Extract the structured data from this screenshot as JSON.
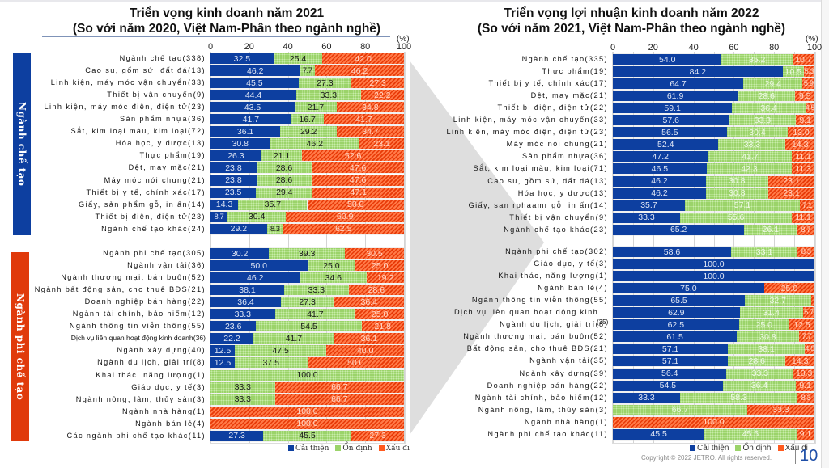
{
  "page": {
    "number": "10",
    "copyright": "Copyright © 2022 JETRO. All rights reserved."
  },
  "colors": {
    "improve": "#0d3fa0",
    "stable": "#9bd36a",
    "worse": "#ff5a1f",
    "mfg_band": "#0d3fa0",
    "nonmfg_band": "#e03a0b"
  },
  "chart_data": [
    {
      "type": "bar",
      "orientation": "horizontal-stacked-100",
      "title": "Triển vọng kinh doanh năm 2021",
      "subtitle": "(So với năm 2020, Việt Nam-Phân theo ngành nghề)",
      "unit_label": "(%)",
      "xlim": [
        0,
        100
      ],
      "xticks": [
        "0",
        "20",
        "40",
        "60",
        "80",
        "100"
      ],
      "grid": true,
      "legend": {
        "position": "bottom-right",
        "entries": [
          "Cải thiện",
          "Ổn định",
          "Xấu đi"
        ]
      },
      "groups": [
        {
          "label": "Ngành chế tạo",
          "categories": [
            "Ngành chế tạo(338)",
            "Cao su, gốm sứ, đất đá(13)",
            "Linh kiện, máy móc vận chuyển(33)",
            "Thiết bị vận chuyển(9)",
            "Linh kiện, máy móc điện, điện tử(23)",
            "Sản phẩm nhựa(36)",
            "Sắt, kim loại màu, kim loại(72)",
            "Hóa học, y dược(13)",
            "Thực phẩm(19)",
            "Dệt, may mặc(21)",
            "Máy móc nói chung(21)",
            "Thiết bị y tế, chính xác(17)",
            "Giấy, sản phẩm gỗ, in ấn(14)",
            "Thiết bị điện, điện tử(23)",
            "Ngành chế tạo khác(24)"
          ],
          "series": [
            {
              "name": "Cải thiện",
              "values": [
                32.5,
                46.2,
                45.5,
                44.4,
                43.5,
                41.7,
                36.1,
                30.8,
                26.3,
                23.8,
                23.8,
                23.5,
                14.3,
                8.7,
                29.2
              ]
            },
            {
              "name": "Ổn định",
              "values": [
                25.4,
                7.7,
                27.3,
                33.3,
                21.7,
                16.7,
                29.2,
                46.2,
                21.1,
                28.6,
                28.6,
                29.4,
                35.7,
                30.4,
                8.3
              ]
            },
            {
              "name": "Xấu đi",
              "values": [
                42.0,
                46.2,
                27.3,
                22.2,
                34.8,
                41.7,
                34.7,
                23.1,
                52.6,
                47.6,
                47.6,
                47.1,
                50.0,
                60.9,
                62.5
              ]
            }
          ]
        },
        {
          "label": "Ngành phi chế tạo",
          "categories": [
            "Ngành phi chế tạo(305)",
            "Ngành vận tải(36)",
            "Ngành thương mại, bán buôn(52)",
            "Ngành bất động sản, cho thuê BĐS(21)",
            "Doanh nghiệp bán hàng(22)",
            "Ngành tài chính, bảo hiểm(12)",
            "Ngành thông tin viễn thông(55)",
            "Dịch vụ liên quan hoạt động kinh doanh(36)",
            "Ngành xây dựng(40)",
            "Ngành du lịch, giải trí(8)",
            "Khai thác, năng lượng(1)",
            "Giáo dục, y tế(3)",
            "Ngành nông, lâm, thủy sản(3)",
            "Ngành nhà hàng(1)",
            "Ngành bán lẻ(4)",
            "Các ngành phi chế tạo khác(11)"
          ],
          "series": [
            {
              "name": "Cải thiện",
              "values": [
                30.2,
                50.0,
                46.2,
                38.1,
                36.4,
                33.3,
                23.6,
                22.2,
                12.5,
                12.5,
                0,
                0,
                0,
                0,
                0,
                27.3
              ]
            },
            {
              "name": "Ổn định",
              "values": [
                39.3,
                25.0,
                34.6,
                33.3,
                27.3,
                41.7,
                54.5,
                41.7,
                47.5,
                37.5,
                100.0,
                33.3,
                33.3,
                0,
                0,
                45.5
              ]
            },
            {
              "name": "Xấu đi",
              "values": [
                30.5,
                25.0,
                19.2,
                28.6,
                36.4,
                25.0,
                21.8,
                36.1,
                40.0,
                50.0,
                0,
                66.7,
                66.7,
                100.0,
                100.0,
                27.3
              ]
            }
          ]
        }
      ]
    },
    {
      "type": "bar",
      "orientation": "horizontal-stacked-100",
      "title": "Triển vọng lợi nhuận kinh doanh năm 2022",
      "subtitle": "(So với năm 2021, Việt Nam-Phân theo ngành nghề)",
      "unit_label": "(%)",
      "xlim": [
        0,
        100
      ],
      "xticks": [
        "0",
        "20",
        "40",
        "60",
        "80",
        "100"
      ],
      "grid": true,
      "legend": {
        "position": "bottom-right",
        "entries": [
          "Cải thiện",
          "Ổn định",
          "Xấu đi"
        ]
      },
      "groups": [
        {
          "label": "Ngành chế tạo",
          "categories": [
            "Ngành chế tạo(335)",
            "Thực phẩm(19)",
            "Thiết bị y tế, chính xác(17)",
            "Dệt, may mặc(21)",
            "Thiết bị điện, điện tử(22)",
            "Linh kiện, máy móc vận chuyển(33)",
            "Linh kiện, máy móc điện, điện tử(23)",
            "Máy móc nói chung(21)",
            "Sản phẩm nhựa(36)",
            "Sắt, kim loại màu, kim loại(71)",
            "Cao su, gồm sứ, đất đá(13)",
            "Hóa học, y dược(13)",
            "Giấy, san rphaamr gỗ, in ấn(14)",
            "Thiết bị vận chuyển(9)",
            "Ngành chế tạo khác(23)"
          ],
          "series": [
            {
              "name": "Cải thiện",
              "values": [
                54.0,
                84.2,
                64.7,
                61.9,
                59.1,
                57.6,
                56.5,
                52.4,
                47.2,
                46.5,
                46.2,
                46.2,
                35.7,
                33.3,
                65.2
              ]
            },
            {
              "name": "Ổn định",
              "values": [
                35.2,
                10.5,
                29.4,
                28.6,
                36.4,
                33.3,
                30.4,
                33.3,
                41.7,
                42.3,
                30.8,
                30.8,
                57.1,
                55.6,
                26.1
              ]
            },
            {
              "name": "Xấu đi",
              "values": [
                10.7,
                5.3,
                5.9,
                9.5,
                4.5,
                9.1,
                13.0,
                14.3,
                11.1,
                11.3,
                23.1,
                23.1,
                7.1,
                11.1,
                8.7
              ]
            }
          ]
        },
        {
          "label": "Ngành phi chế tạo",
          "categories": [
            "Ngành phi chế tạo(302)",
            "Giáo dục, y tế(3)",
            "Khai thác, năng lượng(1)",
            "Ngành bán lẻ(4)",
            "Ngành thông tin viễn thông(55)",
            "Dịch vụ liên quan hoạt động kinh...",
            "Ngành du lịch, giải trí(8)",
            "Ngành thương mại, bán buôn(52)",
            "Bất động sản, cho thuê BĐS(21)",
            "Ngành vận tải(35)",
            "Ngành xây dựng(39)",
            "Doanh nghiệp bán hàng(22)",
            "Ngành tài chính, bảo hiểm(12)",
            "Ngành nông, lâm, thủy sản(3)",
            "Ngành nhà hàng(1)",
            "Ngành phi chế tạo khác(11)"
          ],
          "overflow_note": "(35)",
          "series": [
            {
              "name": "Cải thiện",
              "values": [
                58.6,
                100.0,
                100.0,
                75.0,
                65.5,
                62.9,
                62.5,
                61.5,
                57.1,
                57.1,
                56.4,
                54.5,
                33.3,
                0,
                0,
                45.5
              ]
            },
            {
              "name": "Ổn định",
              "values": [
                33.1,
                0,
                0,
                0,
                32.7,
                31.4,
                25.0,
                30.8,
                38.1,
                28.6,
                33.3,
                36.4,
                58.3,
                66.7,
                0,
                45.5
              ]
            },
            {
              "name": "Xấu đi",
              "values": [
                8.3,
                0,
                0,
                25.0,
                1.8,
                5.7,
                12.5,
                7.7,
                4.8,
                14.3,
                10.3,
                9.1,
                8.3,
                33.3,
                100.0,
                9.1
              ]
            }
          ],
          "labels_hidden_for": [
            "Ngành thông tin viễn thông(55)|Xấu đi"
          ]
        }
      ]
    }
  ]
}
